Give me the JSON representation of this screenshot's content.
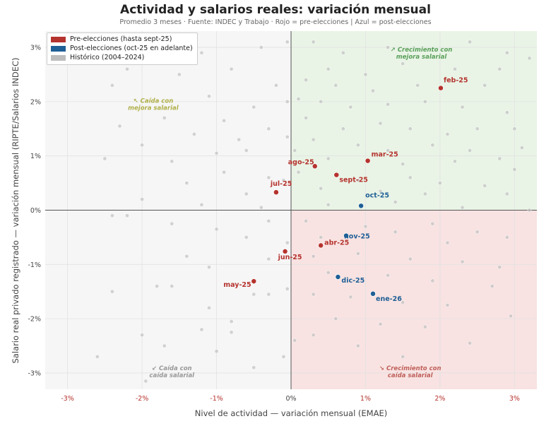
{
  "chart_data": {
    "type": "scatter",
    "title": "Actividad y salarios reales: variación mensual",
    "subtitle": "Promedio 3 meses · Fuente: INDEC y Trabajo · Rojo = pre-elecciones  |  Azul = post-elecciones",
    "xlabel": "Nivel de actividad — variación mensual (EMAE)",
    "ylabel": "Salario real privado registrado — variación mensual (RIPTE/Salarios INDEC)",
    "xlim": [
      -3.3,
      3.3
    ],
    "ylim": [
      -3.3,
      3.3
    ],
    "x_ticks": [
      "-3%",
      "-2%",
      "-1%",
      "0%",
      "1%",
      "2%",
      "3%"
    ],
    "y_ticks": [
      "3%",
      "2%",
      "1%",
      "0%",
      "-1%",
      "-2%",
      "-3%"
    ],
    "grid": true,
    "legend_position": "top-left",
    "colors": {
      "pre": "#b5332e",
      "post": "#1f5f96",
      "historic": "#bdbdbd",
      "q_growth_better": "#e9f4e6",
      "q_growth_worse": "#f8e3e2",
      "q_neutral": "#f6f6f6"
    },
    "legend": [
      {
        "label": "Pre-elecciones (hasta sept-25)",
        "color": "#b5332e"
      },
      {
        "label": "Post-elecciones (oct-25 en adelante)",
        "color": "#1f5f96"
      },
      {
        "label": "Histórico (2004–2024)",
        "color": "#bdbdbd"
      }
    ],
    "quadrant_labels": [
      {
        "text": [
          "↗ Crecimiento con",
          "mejora salarial"
        ],
        "x": 1.75,
        "y": 2.92,
        "color": "#5aa05a"
      },
      {
        "text": [
          "↖ Caída con",
          "mejora salarial"
        ],
        "x": -1.85,
        "y": 1.98,
        "color": "#b0b04a"
      },
      {
        "text": [
          "↙ Caída con",
          "caída salarial"
        ],
        "x": -1.6,
        "y": -2.95,
        "color": "#999999"
      },
      {
        "text": [
          "↘ Crecimiento con",
          "caída salarial"
        ],
        "x": 1.6,
        "y": -2.95,
        "color": "#c0605a"
      }
    ],
    "series": [
      {
        "name": "Pre-elecciones (hasta sept-25)",
        "color": "#b5332e",
        "points": [
          {
            "label": "feb-25",
            "x": 2.01,
            "y": 2.25
          },
          {
            "label": "mar-25",
            "x": 1.03,
            "y": 0.91
          },
          {
            "label": "ago-25",
            "x": 0.32,
            "y": 0.81
          },
          {
            "label": "sept-25",
            "x": 0.61,
            "y": 0.65
          },
          {
            "label": "jul-25",
            "x": -0.2,
            "y": 0.33
          },
          {
            "label": "abr-25",
            "x": 0.4,
            "y": -0.65
          },
          {
            "label": "jun-25",
            "x": -0.08,
            "y": -0.76
          },
          {
            "label": "may-25",
            "x": -0.5,
            "y": -1.31
          }
        ]
      },
      {
        "name": "Post-elecciones (oct-25 en adelante)",
        "color": "#1f5f96",
        "points": [
          {
            "label": "oct-25",
            "x": 0.94,
            "y": 0.08
          },
          {
            "label": "nov-25",
            "x": 0.74,
            "y": -0.47
          },
          {
            "label": "dic-25",
            "x": 0.63,
            "y": -1.23
          },
          {
            "label": "ene-26",
            "x": 1.1,
            "y": -1.54
          }
        ]
      },
      {
        "name": "Histórico (2004–2024)",
        "color": "#bdbdbd",
        "points": [
          [
            0.3,
            3.1
          ],
          [
            0.7,
            2.9
          ],
          [
            1.3,
            3.0
          ],
          [
            2.4,
            3.1
          ],
          [
            2.9,
            2.9
          ],
          [
            3.2,
            2.8
          ],
          [
            0.5,
            2.6
          ],
          [
            1.0,
            2.5
          ],
          [
            1.5,
            2.7
          ],
          [
            2.2,
            2.6
          ],
          [
            2.8,
            2.6
          ],
          [
            0.2,
            2.4
          ],
          [
            0.6,
            2.3
          ],
          [
            1.1,
            2.2
          ],
          [
            1.7,
            2.3
          ],
          [
            2.6,
            2.3
          ],
          [
            0.1,
            2.05
          ],
          [
            0.4,
            2.0
          ],
          [
            0.8,
            1.9
          ],
          [
            1.3,
            1.95
          ],
          [
            1.8,
            2.0
          ],
          [
            2.3,
            1.9
          ],
          [
            2.9,
            1.8
          ],
          [
            0.2,
            1.7
          ],
          [
            0.7,
            1.5
          ],
          [
            1.2,
            1.6
          ],
          [
            1.6,
            1.5
          ],
          [
            2.1,
            1.4
          ],
          [
            2.5,
            1.5
          ],
          [
            3.0,
            1.5
          ],
          [
            0.3,
            1.3
          ],
          [
            0.9,
            1.2
          ],
          [
            1.3,
            1.1
          ],
          [
            1.9,
            1.2
          ],
          [
            2.4,
            1.1
          ],
          [
            3.1,
            1.15
          ],
          [
            0.5,
            0.95
          ],
          [
            1.5,
            0.85
          ],
          [
            2.2,
            0.9
          ],
          [
            2.8,
            0.95
          ],
          [
            0.1,
            0.7
          ],
          [
            0.9,
            0.55
          ],
          [
            1.6,
            0.6
          ],
          [
            2.0,
            0.5
          ],
          [
            2.6,
            0.45
          ],
          [
            3.0,
            0.75
          ],
          [
            0.4,
            0.4
          ],
          [
            1.2,
            0.35
          ],
          [
            1.8,
            0.3
          ],
          [
            2.9,
            0.3
          ],
          [
            0.5,
            0.1
          ],
          [
            1.4,
            0.15
          ],
          [
            2.3,
            0.05
          ],
          [
            3.2,
            0.0
          ],
          [
            0.2,
            -0.2
          ],
          [
            1.0,
            -0.3
          ],
          [
            1.9,
            -0.25
          ],
          [
            2.5,
            -0.4
          ],
          [
            0.4,
            -0.5
          ],
          [
            1.4,
            -0.4
          ],
          [
            2.1,
            -0.6
          ],
          [
            2.9,
            -0.5
          ],
          [
            0.3,
            -0.85
          ],
          [
            0.9,
            -0.8
          ],
          [
            1.6,
            -0.9
          ],
          [
            2.3,
            -0.95
          ],
          [
            2.8,
            -1.05
          ],
          [
            0.5,
            -1.15
          ],
          [
            1.3,
            -1.2
          ],
          [
            1.9,
            -1.3
          ],
          [
            2.7,
            -1.4
          ],
          [
            0.3,
            -1.55
          ],
          [
            0.8,
            -1.6
          ],
          [
            1.5,
            -1.7
          ],
          [
            2.1,
            -1.75
          ],
          [
            2.95,
            -1.95
          ],
          [
            0.6,
            -2.0
          ],
          [
            1.2,
            -2.1
          ],
          [
            1.8,
            -2.15
          ],
          [
            2.4,
            -2.45
          ],
          [
            0.3,
            -2.3
          ],
          [
            0.9,
            -2.5
          ],
          [
            1.5,
            -2.7
          ],
          [
            -0.05,
            3.1
          ],
          [
            -0.05,
            2.0
          ],
          [
            -0.05,
            1.35
          ],
          [
            0.05,
            1.1
          ],
          [
            -0.1,
            0.55
          ],
          [
            -0.05,
            -1.45
          ],
          [
            0.05,
            -2.4
          ],
          [
            -0.1,
            -2.7
          ],
          [
            -2.6,
            3.1
          ],
          [
            -1.9,
            3.0
          ],
          [
            -1.2,
            2.9
          ],
          [
            -0.4,
            3.0
          ],
          [
            -2.2,
            2.6
          ],
          [
            -1.5,
            2.5
          ],
          [
            -0.8,
            2.6
          ],
          [
            -0.2,
            2.3
          ],
          [
            -2.4,
            2.3
          ],
          [
            -1.1,
            2.1
          ],
          [
            -0.5,
            1.9
          ],
          [
            -1.7,
            1.7
          ],
          [
            -0.9,
            1.65
          ],
          [
            -2.3,
            1.55
          ],
          [
            -0.3,
            1.5
          ],
          [
            -1.3,
            1.4
          ],
          [
            -0.7,
            1.3
          ],
          [
            -2.0,
            1.2
          ],
          [
            -0.6,
            1.1
          ],
          [
            -1.0,
            1.05
          ],
          [
            -2.5,
            0.95
          ],
          [
            -1.6,
            0.9
          ],
          [
            -0.9,
            0.7
          ],
          [
            -0.3,
            0.6
          ],
          [
            -1.4,
            0.5
          ],
          [
            -0.6,
            0.3
          ],
          [
            -2.0,
            0.2
          ],
          [
            -1.2,
            0.1
          ],
          [
            -0.4,
            0.05
          ],
          [
            -2.4,
            -0.1
          ],
          [
            -2.2,
            -0.1
          ],
          [
            -1.6,
            -0.25
          ],
          [
            -1.0,
            -0.35
          ],
          [
            -0.6,
            -0.5
          ],
          [
            -1.4,
            -0.85
          ],
          [
            -0.3,
            -0.9
          ],
          [
            -1.1,
            -1.05
          ],
          [
            -2.4,
            -1.5
          ],
          [
            -1.8,
            -1.4
          ],
          [
            -1.6,
            -1.4
          ],
          [
            -0.5,
            -1.55
          ],
          [
            -0.3,
            -1.55
          ],
          [
            -1.1,
            -1.8
          ],
          [
            -0.8,
            -2.05
          ],
          [
            -1.2,
            -2.2
          ],
          [
            -0.8,
            -2.25
          ],
          [
            -2.0,
            -2.3
          ],
          [
            -1.7,
            -2.5
          ],
          [
            -1.0,
            -2.6
          ],
          [
            -2.6,
            -2.7
          ],
          [
            -0.5,
            -2.9
          ],
          [
            -1.95,
            -3.15
          ],
          [
            -0.05,
            -0.6
          ],
          [
            -0.3,
            -0.2
          ]
        ]
      }
    ]
  }
}
